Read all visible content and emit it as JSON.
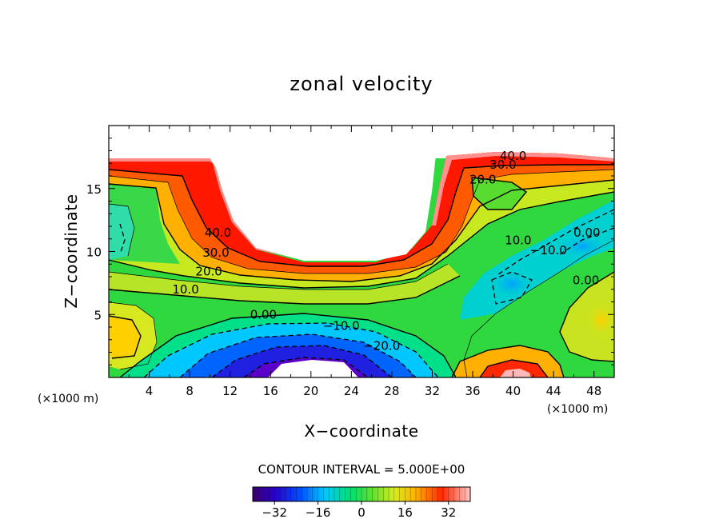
{
  "chart_data": {
    "type": "contour",
    "title": "zonal velocity",
    "xlabel": "X−coordinate",
    "ylabel": "Z−coordinate",
    "x_unit": "(×1000 m)",
    "y_unit": "(×1000 m)",
    "xlim": [
      0,
      50
    ],
    "ylim": [
      0,
      20
    ],
    "x_ticks": [
      4,
      8,
      12,
      16,
      20,
      24,
      28,
      32,
      36,
      40,
      44,
      48
    ],
    "x_tick_labels": [
      "4",
      "8",
      "12",
      "16",
      "20",
      "24",
      "28",
      "32",
      "36",
      "40",
      "44",
      "48"
    ],
    "y_ticks": [
      5,
      10,
      15
    ],
    "y_tick_labels": [
      "5",
      "10",
      "15"
    ],
    "contour_interval_text": "CONTOUR INTERVAL = 5.000E+00",
    "colorbar": {
      "range": [
        -40,
        40
      ],
      "ticks": [
        -32,
        -16,
        0,
        16,
        32
      ],
      "tick_labels": [
        "−32",
        "−16",
        "0",
        "16",
        "32"
      ]
    },
    "contour_labels": [
      {
        "text": "40.0",
        "x": 10.8,
        "z": 11.5
      },
      {
        "text": "30.0",
        "x": 10.6,
        "z": 9.9
      },
      {
        "text": "20.0",
        "x": 9.9,
        "z": 8.4
      },
      {
        "text": "10.0",
        "x": 7.6,
        "z": 7.0
      },
      {
        "text": "0.00",
        "x": 15.3,
        "z": 5.0
      },
      {
        "text": "−10.0",
        "x": 23.0,
        "z": 4.1
      },
      {
        "text": "−20.0",
        "x": 27.0,
        "z": 2.5
      },
      {
        "text": "40.0",
        "x": 40.0,
        "z": 17.6
      },
      {
        "text": "30.0",
        "x": 39.0,
        "z": 16.9
      },
      {
        "text": "20.0",
        "x": 37.0,
        "z": 15.7
      },
      {
        "text": "10.0",
        "x": 40.5,
        "z": 10.9
      },
      {
        "text": "−10.0",
        "x": 43.5,
        "z": 10.1
      },
      {
        "text": "0.00",
        "x": 47.3,
        "z": 11.5
      },
      {
        "text": "0.00",
        "x": 47.2,
        "z": 7.7
      }
    ]
  }
}
